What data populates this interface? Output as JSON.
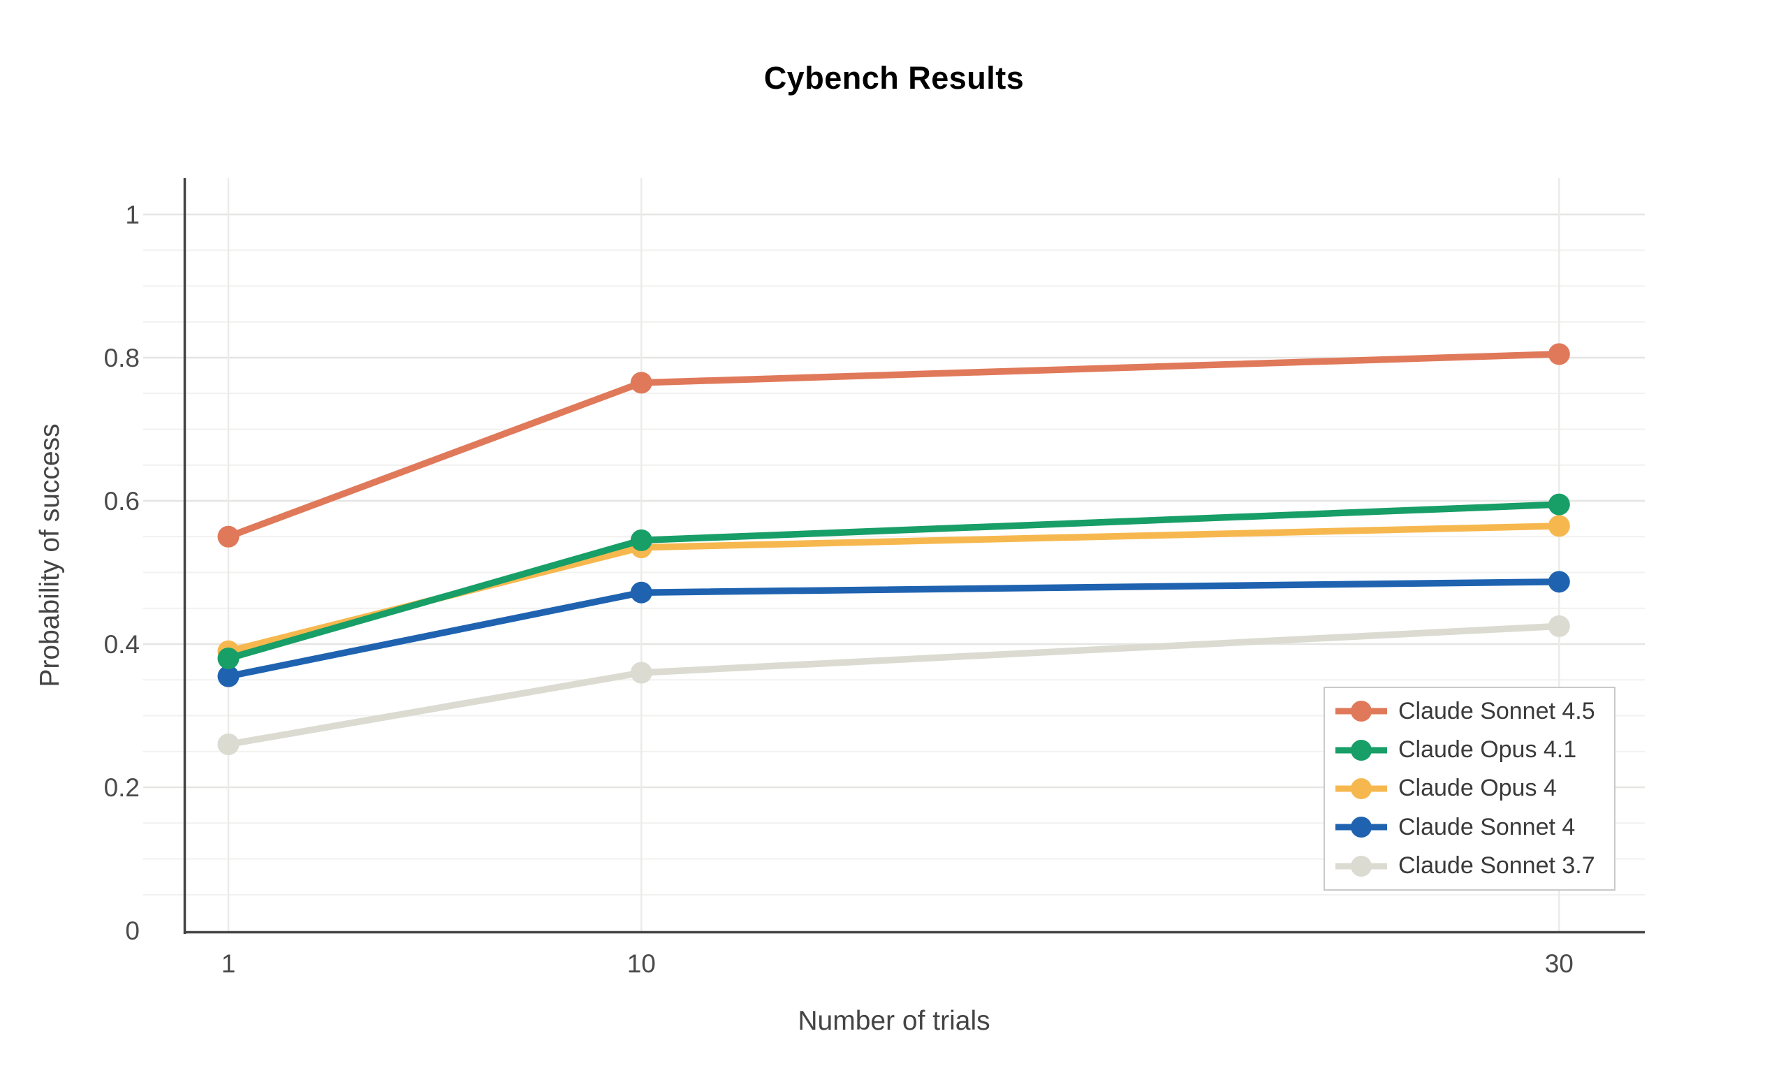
{
  "chart_data": {
    "type": "line",
    "title": "Cybench Results",
    "xlabel": "Number of trials",
    "ylabel": "Probability of success",
    "x_scale": "linear",
    "xlim": [
      0,
      31.9
    ],
    "ylim": [
      0,
      1.05
    ],
    "grid": true,
    "y_minor_step": 0.05,
    "legend_position": "lower-right",
    "x": [
      1,
      10,
      30
    ],
    "x_ticks": [
      1,
      10,
      30
    ],
    "x_tick_labels": [
      "1",
      "10",
      "30"
    ],
    "y_ticks": [
      0,
      0.2,
      0.4,
      0.6,
      0.8,
      1
    ],
    "y_tick_labels": [
      "0",
      "0.2",
      "0.4",
      "0.6",
      "0.8",
      "1"
    ],
    "series": [
      {
        "name": "Claude Sonnet 4.5",
        "color": "#E0795A",
        "values": [
          0.55,
          0.765,
          0.805
        ]
      },
      {
        "name": "Claude Opus 4.1",
        "color": "#189E67",
        "values": [
          0.38,
          0.545,
          0.595
        ]
      },
      {
        "name": "Claude Opus 4",
        "color": "#F6B84E",
        "values": [
          0.39,
          0.535,
          0.565
        ]
      },
      {
        "name": "Claude Sonnet 4",
        "color": "#1F63B0",
        "values": [
          0.355,
          0.472,
          0.487
        ]
      },
      {
        "name": "Claude Sonnet 3.7",
        "color": "#DBDBD2",
        "values": [
          0.26,
          0.36,
          0.425
        ]
      }
    ]
  },
  "style": {
    "background": "#FFFFFF",
    "title_color": "#000000",
    "axis_color": "#444444",
    "tick_label_color": "#4A4A4A",
    "axis_title_color": "#444444",
    "grid_major": "#E5E5E3",
    "grid_minor": "#F1F1EF",
    "grid_vertical": "#EBEBE9",
    "legend_border": "#C9C9C9",
    "legend_text_color": "#3A3A3A"
  }
}
